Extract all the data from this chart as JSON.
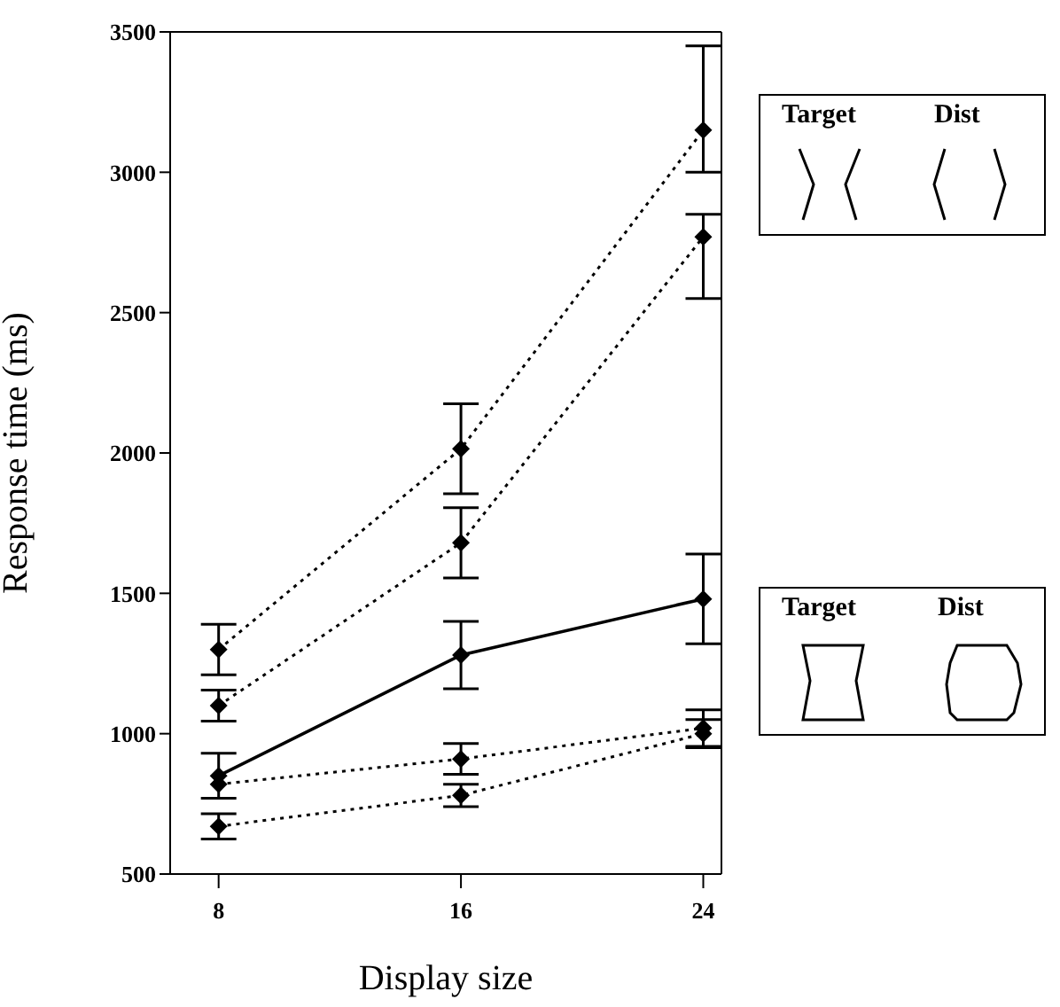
{
  "chart_data": {
    "type": "line",
    "xlabel": "Display size",
    "ylabel": "Response time (ms)",
    "x": [
      8,
      16,
      24
    ],
    "series": [
      {
        "color": "#000000",
        "line_style": "dotted",
        "values": [
          1300,
          2015,
          3150
        ],
        "errors": [
          90,
          160,
          [
            3000,
            3450
          ]
        ]
      },
      {
        "color": "#000000",
        "line_style": "dotted",
        "values": [
          1100,
          1680,
          2770
        ],
        "errors": [
          55,
          125,
          [
            2550,
            2850
          ]
        ]
      },
      {
        "color": "#000000",
        "line_style": "solid",
        "values": [
          850,
          1280,
          1480
        ],
        "errors": [
          80,
          120,
          160
        ]
      },
      {
        "color": "#000000",
        "line_style": "dotted",
        "values": [
          820,
          910,
          1020
        ],
        "errors": [
          null,
          55,
          65
        ]
      },
      {
        "color": "#000000",
        "line_style": "dotted",
        "values": [
          670,
          780,
          1000
        ],
        "errors": [
          45,
          40,
          50
        ]
      }
    ],
    "xlim": [
      6.4,
      24.6
    ],
    "xticks": [
      8,
      16,
      24
    ],
    "ylim": [
      500,
      3500
    ],
    "yticks": [
      500,
      1000,
      1500,
      2000,
      2500,
      3000,
      3500
    ],
    "marker": "diamond",
    "grid": false,
    "legend": false,
    "annotations": [
      "Target",
      "Dist",
      "Target",
      "Dist"
    ]
  }
}
